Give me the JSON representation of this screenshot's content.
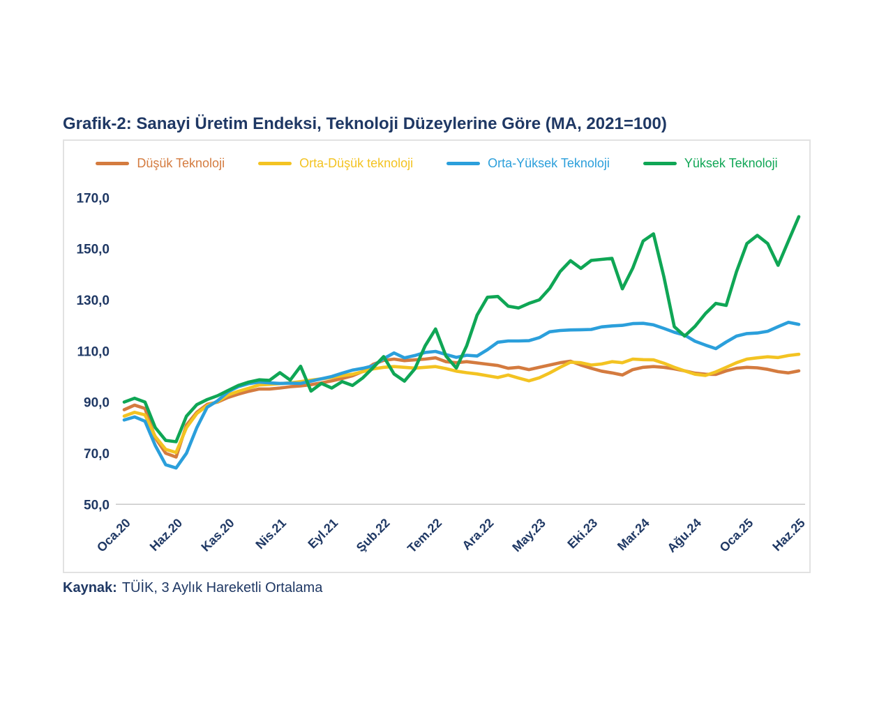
{
  "page": {
    "title": "Grafik-2: Sanayi Üretim Endeksi, Teknoloji Düzeylerine Göre (MA, 2021=100)",
    "source_label": "Kaynak:",
    "source_text": "TÜİK, 3 Aylık Hareketli Ortalama"
  },
  "colors": {
    "title_navy": "#1F3864",
    "axis_text": "#1F3864",
    "axis_line": "#C8C8C8",
    "chart_border": "#E2E2E2",
    "orange": "#D47B3F",
    "yellow": "#F3C322",
    "blue": "#2B9FDB",
    "green": "#0FA655"
  },
  "chart_data": {
    "type": "line",
    "title": "Grafik-2: Sanayi Üretim Endeksi, Teknoloji Düzeylerine Göre (MA, 2021=100)",
    "xlabel": "",
    "ylabel": "",
    "ylim": [
      50,
      170
    ],
    "grid": false,
    "legend_position": "top",
    "n_points": 66,
    "x_range_note": "monthly, Oca.20 to Haz.25",
    "y_tick_labels": [
      "170,0",
      "150,0",
      "130,0",
      "110,0",
      "90,0",
      "70,0",
      "50,0"
    ],
    "y_tick_values": [
      170,
      150,
      130,
      110,
      90,
      70,
      50
    ],
    "x_tick_labels": [
      "Oca.20",
      "Haz.20",
      "Kas.20",
      "Nis.21",
      "Eyl.21",
      "Şub.22",
      "Tem.22",
      "Ara.22",
      "May.23",
      "Eki.23",
      "Mar.24",
      "Ağu.24",
      "Oca.25",
      "Haz.25"
    ],
    "x_tick_indices": [
      0,
      5,
      10,
      15,
      20,
      25,
      30,
      35,
      40,
      45,
      50,
      55,
      60,
      65
    ],
    "series": [
      {
        "name": "Düşük Teknoloji",
        "color": "#D47B3F",
        "values": [
          87.0,
          88.8,
          87.5,
          76.0,
          70.0,
          68.5,
          81.0,
          86.0,
          89.1,
          90.0,
          91.8,
          93.1,
          94.2,
          95.1,
          95.1,
          95.5,
          96.0,
          96.3,
          96.8,
          97.5,
          98.3,
          99.2,
          100.3,
          102.0,
          104.8,
          106.3,
          106.8,
          106.2,
          106.5,
          106.8,
          107.3,
          105.8,
          105.4,
          105.8,
          105.3,
          104.8,
          104.3,
          103.2,
          103.6,
          102.7,
          103.6,
          104.5,
          105.4,
          106.0,
          104.5,
          103.2,
          102.1,
          101.4,
          100.6,
          102.7,
          103.6,
          103.9,
          103.6,
          103.0,
          102.2,
          101.3,
          100.9,
          100.8,
          102.2,
          103.2,
          103.6,
          103.4,
          102.8,
          101.9,
          101.4,
          102.2
        ]
      },
      {
        "name": "Orta-Düşük teknoloji",
        "color": "#F3C322",
        "values": [
          84.5,
          86.0,
          85.0,
          76.5,
          71.5,
          70.3,
          80.0,
          85.5,
          88.6,
          90.2,
          92.8,
          94.2,
          95.4,
          96.7,
          96.9,
          97.2,
          97.5,
          98.0,
          98.6,
          99.1,
          99.6,
          100.3,
          100.9,
          101.9,
          103.0,
          103.6,
          103.9,
          103.6,
          103.3,
          103.6,
          103.9,
          103.1,
          102.1,
          101.5,
          101.0,
          100.3,
          99.6,
          100.6,
          99.4,
          98.3,
          99.5,
          101.4,
          103.6,
          105.6,
          105.4,
          104.5,
          104.9,
          105.8,
          105.4,
          106.8,
          106.6,
          106.5,
          105.2,
          103.6,
          102.2,
          100.9,
          100.4,
          101.8,
          103.6,
          105.4,
          106.8,
          107.3,
          107.7,
          107.4,
          108.2,
          108.7
        ]
      },
      {
        "name": "Orta-Yüksek Teknoloji",
        "color": "#2B9FDB",
        "values": [
          83.0,
          84.2,
          82.5,
          73.0,
          65.5,
          64.2,
          70.0,
          80.0,
          88.0,
          90.5,
          94.0,
          96.0,
          97.2,
          97.8,
          97.5,
          97.3,
          97.4,
          97.3,
          98.2,
          99.1,
          100.0,
          101.3,
          102.5,
          103.2,
          104.2,
          107.0,
          109.2,
          107.3,
          108.2,
          109.4,
          109.8,
          108.6,
          107.5,
          108.3,
          108.0,
          110.5,
          113.4,
          113.9,
          113.9,
          114.0,
          115.2,
          117.5,
          118.0,
          118.2,
          118.3,
          118.4,
          119.4,
          119.8,
          120.0,
          120.7,
          120.8,
          120.2,
          118.8,
          117.3,
          116.2,
          113.8,
          112.3,
          110.9,
          113.5,
          115.8,
          116.8,
          117.0,
          117.7,
          119.5,
          121.2,
          120.4
        ]
      },
      {
        "name": "Yüksek Teknoloji",
        "color": "#0FA655",
        "values": [
          90.0,
          91.5,
          90.0,
          80.0,
          75.0,
          74.5,
          84.5,
          89.0,
          91.0,
          92.5,
          94.5,
          96.5,
          97.8,
          98.7,
          98.5,
          101.5,
          98.6,
          104.0,
          94.3,
          97.3,
          95.5,
          98.0,
          96.5,
          99.5,
          103.5,
          107.8,
          101.0,
          98.2,
          103.0,
          112.0,
          118.6,
          108.0,
          103.3,
          112.0,
          124.0,
          131.0,
          131.3,
          127.5,
          126.8,
          128.6,
          130.0,
          134.5,
          141.0,
          145.3,
          142.3,
          145.4,
          145.8,
          146.2,
          134.3,
          142.4,
          153.0,
          155.8,
          139.0,
          119.5,
          115.8,
          119.6,
          124.6,
          128.6,
          127.8,
          141.0,
          152.0,
          155.2,
          152.0,
          143.5,
          153.0,
          162.5
        ]
      }
    ]
  }
}
